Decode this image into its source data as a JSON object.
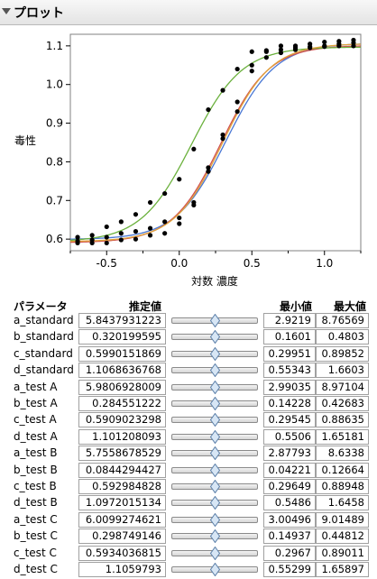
{
  "window": {
    "title": "プロット"
  },
  "plot": {
    "y_axis_label": "毒性",
    "x_axis_label": "対数 濃度"
  },
  "chart_data": {
    "type": "scatter",
    "xlabel": "対数 濃度",
    "ylabel": "毒性",
    "xlim": [
      -0.75,
      1.25
    ],
    "ylim": [
      0.57,
      1.13
    ],
    "x_ticks": [
      -0.5,
      0.0,
      0.5,
      1.0
    ],
    "x_tick_labels": [
      "-0.5",
      "0.0",
      "0.5",
      "1.0"
    ],
    "y_ticks": [
      0.6,
      0.7,
      0.8,
      0.9,
      1.0,
      1.1
    ],
    "y_tick_labels": [
      "0.6",
      "0.7",
      "0.8",
      "0.9",
      "1.0",
      "1.1"
    ],
    "grid": false,
    "curves": [
      {
        "group": "standard",
        "color": "#4a78d4",
        "a": 5.8437931223,
        "b": 0.320199595,
        "c": 0.5990151869,
        "d": 1.1068636768
      },
      {
        "group": "A",
        "color": "#d0514f",
        "a": 5.9806928009,
        "b": 0.284551222,
        "c": 0.5909023298,
        "d": 1.101208093
      },
      {
        "group": "B",
        "color": "#6bb13d",
        "a": 5.7558678529,
        "b": 0.0844294427,
        "c": 0.592984828,
        "d": 1.0972015134
      },
      {
        "group": "C",
        "color": "#e0a33c",
        "a": 6.0099274621,
        "b": 0.298749146,
        "c": 0.5934036815,
        "d": 1.1059793
      }
    ],
    "points": [
      [
        -0.7,
        0.605
      ],
      [
        -0.7,
        0.595
      ],
      [
        -0.7,
        0.59
      ],
      [
        -0.6,
        0.61
      ],
      [
        -0.6,
        0.598
      ],
      [
        -0.6,
        0.59
      ],
      [
        -0.5,
        0.632
      ],
      [
        -0.5,
        0.605
      ],
      [
        -0.5,
        0.59
      ],
      [
        -0.4,
        0.645
      ],
      [
        -0.4,
        0.615
      ],
      [
        -0.4,
        0.598
      ],
      [
        -0.3,
        0.664
      ],
      [
        -0.3,
        0.62
      ],
      [
        -0.3,
        0.6
      ],
      [
        -0.2,
        0.695
      ],
      [
        -0.2,
        0.628
      ],
      [
        -0.2,
        0.61
      ],
      [
        -0.1,
        0.718
      ],
      [
        -0.1,
        0.645
      ],
      [
        -0.1,
        0.615
      ],
      [
        0.0,
        0.755
      ],
      [
        0.0,
        0.655
      ],
      [
        0.0,
        0.64
      ],
      [
        0.1,
        0.833
      ],
      [
        0.1,
        0.695
      ],
      [
        0.1,
        0.688
      ],
      [
        0.2,
        0.935
      ],
      [
        0.2,
        0.785
      ],
      [
        0.2,
        0.775
      ],
      [
        0.3,
        0.985
      ],
      [
        0.3,
        0.87
      ],
      [
        0.3,
        0.86
      ],
      [
        0.4,
        1.04
      ],
      [
        0.4,
        0.955
      ],
      [
        0.4,
        0.93
      ],
      [
        0.5,
        1.085
      ],
      [
        0.5,
        1.05
      ],
      [
        0.5,
        1.035
      ],
      [
        0.6,
        1.088
      ],
      [
        0.6,
        1.085
      ],
      [
        0.6,
        1.07
      ],
      [
        0.7,
        1.1
      ],
      [
        0.7,
        1.09
      ],
      [
        0.7,
        1.082
      ],
      [
        0.8,
        1.1
      ],
      [
        0.8,
        1.095
      ],
      [
        0.8,
        1.09
      ],
      [
        0.9,
        1.105
      ],
      [
        0.9,
        1.098
      ],
      [
        0.9,
        1.095
      ],
      [
        1.0,
        1.11
      ],
      [
        1.0,
        1.1
      ],
      [
        1.0,
        1.098
      ],
      [
        1.1,
        1.112
      ],
      [
        1.1,
        1.105
      ],
      [
        1.1,
        1.1
      ],
      [
        1.2,
        1.115
      ],
      [
        1.2,
        1.108
      ],
      [
        1.2,
        1.1
      ]
    ]
  },
  "table": {
    "headers": {
      "param": "パラメータ",
      "estimate": "推定値",
      "min": "最小値",
      "max": "最大値"
    },
    "rows": [
      {
        "name": "a_standard",
        "estimate": "5.8437931223",
        "min": "2.9219",
        "max": "8.76569",
        "position": 0.5
      },
      {
        "name": "b_standard",
        "estimate": "0.320199595",
        "min": "0.1601",
        "max": "0.4803",
        "position": 0.5
      },
      {
        "name": "c_standard",
        "estimate": "0.5990151869",
        "min": "0.29951",
        "max": "0.89852",
        "position": 0.5
      },
      {
        "name": "d_standard",
        "estimate": "1.1068636768",
        "min": "0.55343",
        "max": "1.6603",
        "position": 0.5
      },
      {
        "name": "a_test A",
        "estimate": "5.9806928009",
        "min": "2.99035",
        "max": "8.97104",
        "position": 0.5
      },
      {
        "name": "b_test A",
        "estimate": "0.284551222",
        "min": "0.14228",
        "max": "0.42683",
        "position": 0.5
      },
      {
        "name": "c_test A",
        "estimate": "0.5909023298",
        "min": "0.29545",
        "max": "0.88635",
        "position": 0.5
      },
      {
        "name": "d_test A",
        "estimate": "1.101208093",
        "min": "0.5506",
        "max": "1.65181",
        "position": 0.5
      },
      {
        "name": "a_test B",
        "estimate": "5.7558678529",
        "min": "2.87793",
        "max": "8.6338",
        "position": 0.5
      },
      {
        "name": "b_test B",
        "estimate": "0.0844294427",
        "min": "0.04221",
        "max": "0.12664",
        "position": 0.5
      },
      {
        "name": "c_test B",
        "estimate": "0.592984828",
        "min": "0.29649",
        "max": "0.88948",
        "position": 0.5
      },
      {
        "name": "d_test B",
        "estimate": "1.0972015134",
        "min": "0.5486",
        "max": "1.6458",
        "position": 0.5
      },
      {
        "name": "a_test C",
        "estimate": "6.0099274621",
        "min": "3.00496",
        "max": "9.01489",
        "position": 0.5
      },
      {
        "name": "b_test C",
        "estimate": "0.298749146",
        "min": "0.14937",
        "max": "0.44812",
        "position": 0.5
      },
      {
        "name": "c_test C",
        "estimate": "0.5934036815",
        "min": "0.2967",
        "max": "0.89011",
        "position": 0.5
      },
      {
        "name": "d_test C",
        "estimate": "1.1059793",
        "min": "0.55299",
        "max": "1.65897",
        "position": 0.5
      }
    ]
  }
}
